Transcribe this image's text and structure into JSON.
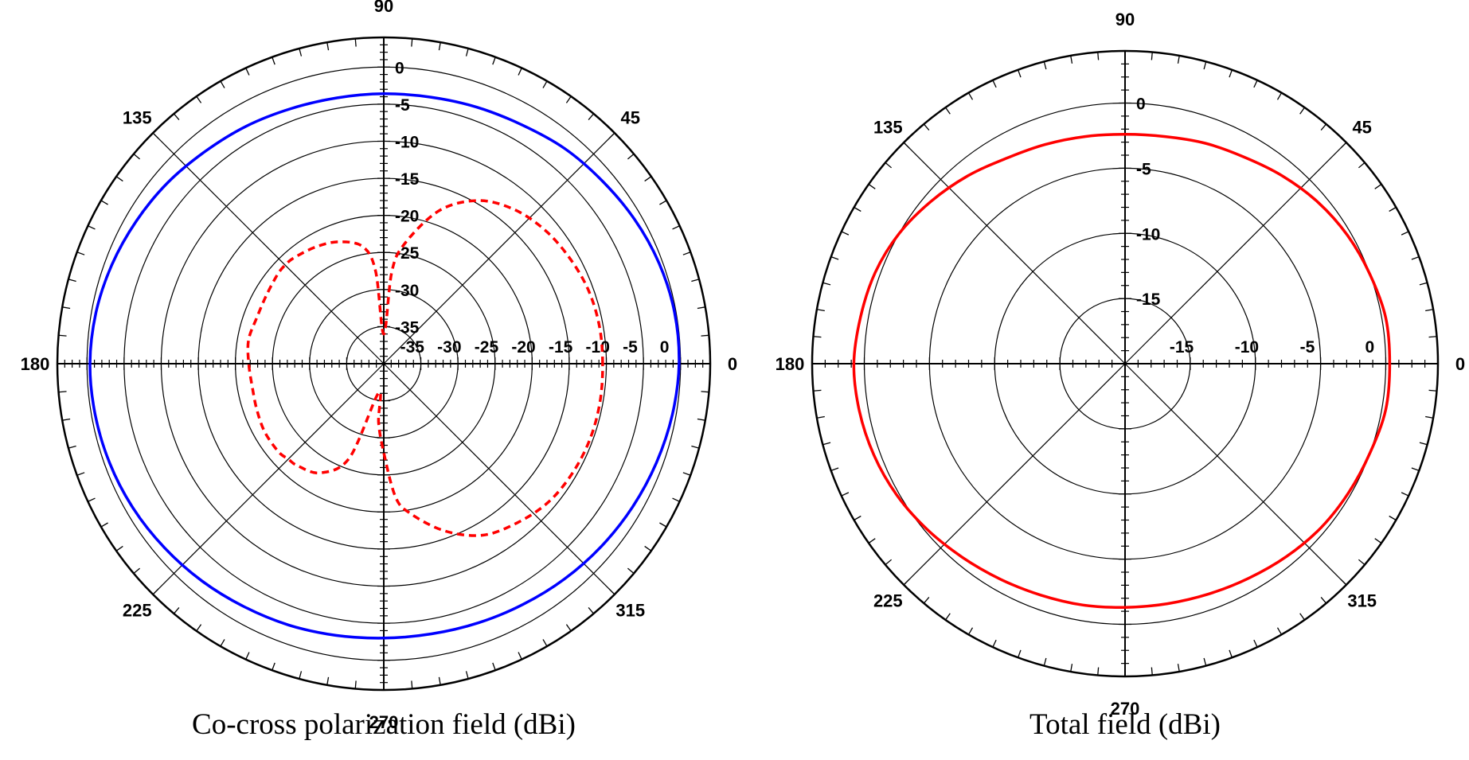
{
  "chart_data": [
    {
      "type": "polar",
      "title": "Co-cross polarization field (dBi)",
      "radial_ticks": [
        -35,
        -30,
        -25,
        -20,
        -15,
        -10,
        -5,
        0
      ],
      "radial_range": [
        -40,
        4
      ],
      "angle_labels": [
        "0",
        "45",
        "90",
        "135",
        "180",
        "225",
        "270",
        "315"
      ],
      "grid": true,
      "series": [
        {
          "style": "solid",
          "color": "#0000ff",
          "theta": [
            0,
            10,
            20,
            30,
            40,
            50,
            60,
            70,
            80,
            90,
            100,
            110,
            120,
            130,
            140,
            150,
            160,
            170,
            180,
            190,
            200,
            210,
            220,
            230,
            240,
            250,
            260,
            270,
            280,
            290,
            300,
            310,
            320,
            330,
            340,
            350,
            360
          ],
          "r": [
            -0.2,
            -0.2,
            -0.5,
            -1.0,
            -1.6,
            -2.1,
            -2.8,
            -3.2,
            -3.5,
            -3.6,
            -3.6,
            -3.4,
            -3.0,
            -2.6,
            -2.0,
            -1.5,
            -1.0,
            -0.6,
            -0.4,
            -0.5,
            -0.7,
            -1.0,
            -1.4,
            -1.8,
            -2.2,
            -2.5,
            -2.8,
            -3.0,
            -3.0,
            -2.8,
            -2.5,
            -2.1,
            -1.7,
            -1.3,
            -0.9,
            -0.5,
            -0.2
          ]
        },
        {
          "style": "dashed",
          "color": "#ff0000",
          "theta": [
            0,
            10,
            20,
            30,
            40,
            50,
            60,
            70,
            80,
            85,
            90,
            95,
            100,
            110,
            120,
            130,
            135,
            140,
            150,
            160,
            170,
            180,
            190,
            200,
            210,
            220,
            225,
            230,
            240,
            250,
            260,
            265,
            270,
            275,
            280,
            290,
            300,
            310,
            320,
            330,
            340,
            350,
            360
          ],
          "r": [
            -10.5,
            -10.5,
            -10.7,
            -11.2,
            -11.8,
            -12.8,
            -14.6,
            -18.0,
            -23.5,
            -27.5,
            -36.0,
            -27.5,
            -24.0,
            -22.5,
            -21.8,
            -21.3,
            -21.2,
            -21.3,
            -21.7,
            -21.8,
            -21.5,
            -21.8,
            -22.0,
            -21.8,
            -21.5,
            -21.5,
            -21.8,
            -22.0,
            -23.0,
            -26.5,
            -36.0,
            -32.0,
            -28.0,
            -22.0,
            -19.5,
            -16.0,
            -13.3,
            -12.0,
            -11.0,
            -10.6,
            -10.4,
            -10.4,
            -10.5
          ]
        }
      ]
    },
    {
      "type": "polar",
      "title": "Total field (dBi)",
      "radial_ticks": [
        -15,
        -10,
        -5,
        0
      ],
      "radial_range": [
        -20,
        4
      ],
      "angle_labels": [
        "0",
        "45",
        "90",
        "135",
        "180",
        "225",
        "270",
        "315"
      ],
      "grid": true,
      "series": [
        {
          "style": "solid",
          "color": "#ff0000",
          "theta": [
            0,
            10,
            20,
            30,
            40,
            50,
            60,
            70,
            80,
            90,
            100,
            110,
            120,
            130,
            140,
            150,
            160,
            170,
            180,
            190,
            200,
            210,
            220,
            230,
            240,
            250,
            260,
            270,
            280,
            290,
            300,
            310,
            320,
            330,
            340,
            350,
            360
          ],
          "r": [
            0.3,
            0.3,
            0.0,
            -0.3,
            -0.7,
            -1.2,
            -1.7,
            -2.0,
            -2.3,
            -2.4,
            -2.3,
            -2.1,
            -1.8,
            -1.2,
            -0.6,
            0.0,
            0.4,
            0.6,
            0.8,
            0.7,
            0.5,
            0.2,
            -0.2,
            -0.6,
            -0.9,
            -1.1,
            -1.2,
            -1.3,
            -1.3,
            -1.2,
            -1.0,
            -0.7,
            -0.4,
            -0.2,
            0.0,
            0.3,
            0.3
          ]
        }
      ]
    }
  ]
}
